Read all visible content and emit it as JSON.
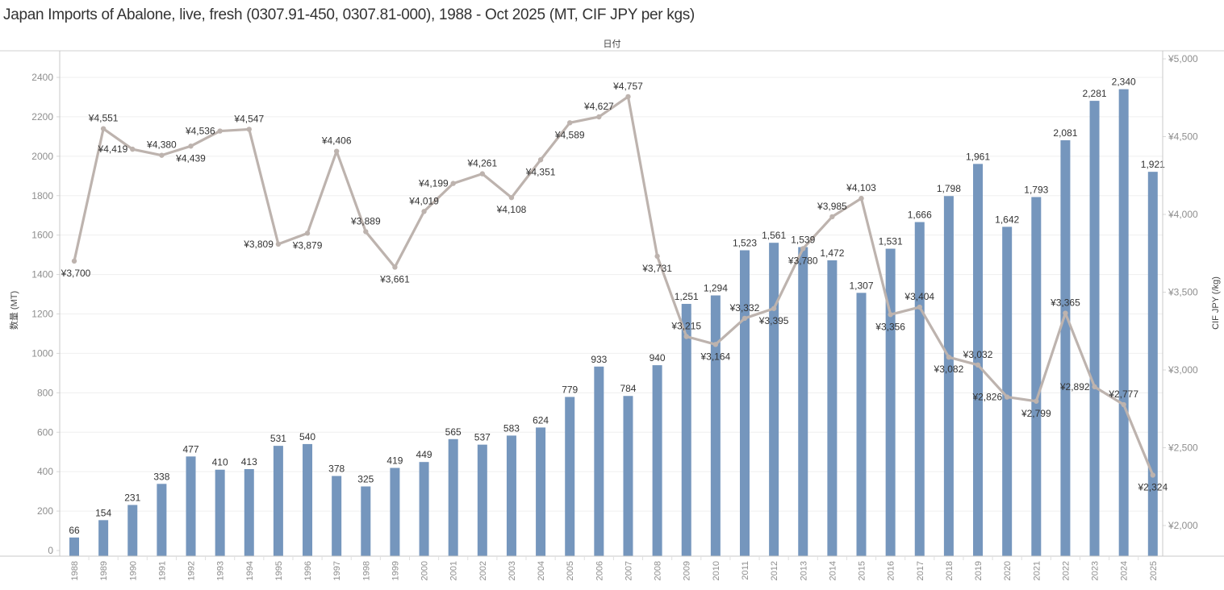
{
  "chart_data": {
    "type": "bar+line",
    "title": "Japan Imports of Abalone, live, fresh (0307.91-450, 0307.81-000), 1988 - Oct 2025 (MT, CIF JPY per kgs)",
    "x_field_label": "日付",
    "categories": [
      "1988",
      "1989",
      "1990",
      "1991",
      "1992",
      "1993",
      "1994",
      "1995",
      "1996",
      "1997",
      "1998",
      "1999",
      "2000",
      "2001",
      "2002",
      "2003",
      "2004",
      "2005",
      "2006",
      "2007",
      "2008",
      "2009",
      "2010",
      "2011",
      "2012",
      "2013",
      "2014",
      "2015",
      "2016",
      "2017",
      "2018",
      "2019",
      "2020",
      "2021",
      "2022",
      "2023",
      "2024",
      "2025"
    ],
    "series": [
      {
        "name": "数量 (MT)",
        "type": "bar",
        "axis": "left",
        "color": "#7596bd",
        "values": [
          66,
          154,
          231,
          338,
          477,
          410,
          413,
          531,
          540,
          378,
          325,
          419,
          449,
          565,
          537,
          583,
          624,
          779,
          933,
          784,
          940,
          1251,
          1294,
          1523,
          1561,
          1539,
          1472,
          1307,
          1531,
          1666,
          1798,
          1961,
          1642,
          1793,
          2081,
          2281,
          2340,
          1921
        ],
        "labels": [
          "66",
          "154",
          "231",
          "338",
          "477",
          "410",
          "413",
          "531",
          "540",
          "378",
          "325",
          "419",
          "449",
          "565",
          "537",
          "583",
          "624",
          "779",
          "933",
          "784",
          "940",
          "1,251",
          "1,294",
          "1,523",
          "1,561",
          "1,539",
          "1,472",
          "1,307",
          "1,531",
          "1,666",
          "1,798",
          "1,961",
          "1,642",
          "1,793",
          "2,081",
          "2,281",
          "2,340",
          "1,921"
        ]
      },
      {
        "name": "CIF JPY (/kg)",
        "type": "line",
        "axis": "right",
        "color": "#bdb3ae",
        "values": [
          3700,
          4551,
          4419,
          4380,
          4439,
          4536,
          4547,
          3809,
          3879,
          4406,
          3889,
          3661,
          4019,
          4199,
          4261,
          4108,
          4351,
          4589,
          4627,
          4757,
          3731,
          3215,
          3164,
          3332,
          3395,
          3780,
          3985,
          4103,
          3356,
          3404,
          3082,
          3032,
          2826,
          2799,
          3365,
          2892,
          2777,
          2324
        ],
        "labels": [
          "¥3,700",
          "¥4,551",
          "¥4,419",
          "¥4,380",
          "¥4,439",
          "¥4,536",
          "¥4,547",
          "¥3,809",
          "¥3,879",
          "¥4,406",
          "¥3,889",
          "¥3,661",
          "¥4,019",
          "¥4,199",
          "¥4,261",
          "¥4,108",
          "¥4,351",
          "¥4,589",
          "¥4,627",
          "¥4,757",
          "¥3,731",
          "¥3,215",
          "¥3,164",
          "¥3,332",
          "¥3,395",
          "¥3,780",
          "¥3,985",
          "¥4,103",
          "¥3,356",
          "¥3,404",
          "¥3,082",
          "¥3,032",
          "¥2,826",
          "¥2,799",
          "¥3,365",
          "¥2,892",
          "¥2,777",
          "¥2,324"
        ],
        "label_position": [
          "below",
          "above",
          "below",
          "below",
          "below",
          "above",
          "above",
          "below",
          "below",
          "above",
          "above",
          "below",
          "above",
          "above",
          "above",
          "below",
          "below",
          "below",
          "above",
          "above",
          "below",
          "above",
          "below",
          "above",
          "below",
          "above",
          "above",
          "above",
          "below",
          "above",
          "below",
          "above",
          "below",
          "below",
          "above",
          "below",
          "above",
          "below"
        ]
      }
    ],
    "left_axis": {
      "label": "数量 (MT)",
      "ylim": [
        0,
        2500
      ],
      "ticks": [
        0,
        200,
        400,
        600,
        800,
        1000,
        1200,
        1400,
        1600,
        1800,
        2000,
        2200,
        2400
      ],
      "tick_labels": [
        "0",
        "200",
        "400",
        "600",
        "800",
        "1000",
        "1200",
        "1400",
        "1600",
        "1800",
        "2000",
        "2200",
        "2400"
      ]
    },
    "right_axis": {
      "label": "CIF JPY (/kg)",
      "ylim": [
        1850,
        5000
      ],
      "ticks": [
        2000,
        2500,
        3000,
        3500,
        4000,
        4500,
        5000
      ],
      "tick_labels": [
        "¥2,000",
        "¥2,500",
        "¥3,000",
        "¥3,500",
        "¥4,000",
        "¥4,500",
        "¥5,000"
      ]
    },
    "grid": true,
    "legend": "none"
  }
}
